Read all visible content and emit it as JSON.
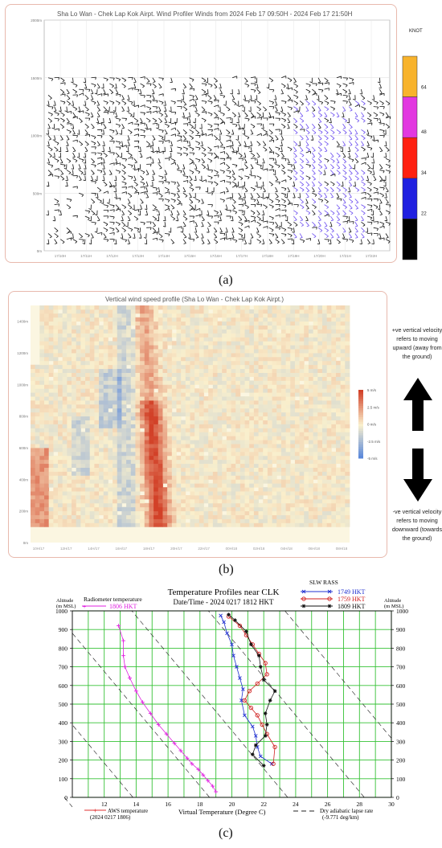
{
  "panel_a": {
    "title": "Sha Lo Wan - Chek Lap Kok Airpt. Wind Profiler Winds from 2024 Feb 17 09:50H - 2024 Feb 17 21:50H",
    "unit": "KNOT",
    "legend_ticks": [
      "64",
      "48",
      "34",
      "22"
    ],
    "legend_colors": [
      "#f8b32c",
      "#e238e0",
      "#ff2010",
      "#2020e0",
      "#000000"
    ],
    "caption": "(a)"
  },
  "panel_b": {
    "title": "Vertical wind speed profile (Sha Lo Wan - Chek Lap Kok Airpt.)",
    "colorbar_labels": [
      "5 m/s",
      "2.5 m/s",
      "0 m/s",
      "-2.5 m/s",
      "-5 m/s"
    ],
    "note_up": "+ve vertical velocity refers to moving upward (away from the ground)",
    "note_down": "-ve vertical velocity refers to moving downward (towards the ground)",
    "caption": "(b)"
  },
  "panel_c": {
    "title": "Temperature Profiles near CLK",
    "datetime": "Date/Time - 2024 0217 1812 HKT",
    "left_axis_label_1": "Altitude",
    "left_axis_label_2": "(m MSL)",
    "right_axis_label_1": "Altitude",
    "right_axis_label_2": "(m MSL)",
    "radiometer_label": "Radiometer temperature",
    "radiometer_time": "1806 HKT",
    "rass_label": "SLW RASS",
    "rass_times": [
      "1749 HKT",
      "1759 HKT",
      "1809 HKT"
    ],
    "aws_label": "AWS temperature",
    "aws_time": "(2024 0217 1806)",
    "xlabel": "Virtual Temperature (Degree C)",
    "lapse_label": "Dry adiabatic lapse rate",
    "lapse_value": "(-9.771 deg/km)",
    "caption": "(c)"
  },
  "chart_data": [
    {
      "type": "scatter",
      "title": "Sha Lo Wan - Chek Lap Kok Airpt. Wind Profiler Winds from 2024 Feb 17 09:50H - 2024 Feb 17 21:50H",
      "ylabel": "",
      "yticks": [
        "0m",
        "500m",
        "1000m",
        "1500m",
        "2000m"
      ],
      "xticks": [
        "17/10H",
        "17/11H",
        "17/12H",
        "17/13H",
        "17/14H",
        "17/15H",
        "17/16H",
        "17/17H",
        "17/18H",
        "17/19H",
        "17/20H",
        "17/21H",
        "17/22H"
      ],
      "ylim": [
        0,
        2000
      ],
      "legend": {
        "unit": "KNOT",
        "bins": [
          ">64",
          "48-64",
          "34-48",
          "22-34",
          "<22"
        ]
      },
      "note": "wind barbs, predominantly black (<22 kt); blue barbs (22-34 kt) mainly 17/18H-17/21H below 1400m"
    },
    {
      "type": "heatmap",
      "title": "Vertical wind speed profile (Sha Lo Wan - Chek Lap Kok Airpt.)",
      "yticks": [
        "0m",
        "200m",
        "400m",
        "600m",
        "800m",
        "1000m",
        "1200m",
        "1400m"
      ],
      "xticks": [
        "10H/17",
        "12H/17",
        "14H/17",
        "16H/17",
        "18H/17",
        "20H/17",
        "22H/17",
        "00H/18",
        "02H/18",
        "04H/18",
        "06H/18",
        "08H/18"
      ],
      "ylim": [
        0,
        1500
      ],
      "colorbar": {
        "labels": [
          "5 m/s",
          "2.5 m/s",
          "0 m/s",
          "-2.5 m/s",
          "-5 m/s"
        ],
        "range": [
          -5,
          5
        ]
      },
      "note": "strong updraft (~+3 to +5 m/s) around 18H-20H/17 below ~900m"
    },
    {
      "type": "line",
      "title": "Temperature Profiles near CLK",
      "xlabel": "Virtual Temperature (Degree C)",
      "ylabel": "Altitude (m MSL)",
      "xlim": [
        10,
        30
      ],
      "ylim": [
        0,
        1000
      ],
      "xticks": [
        12,
        14,
        16,
        18,
        20,
        22,
        24,
        26,
        28,
        30
      ],
      "yticks": [
        0,
        100,
        200,
        300,
        400,
        500,
        600,
        700,
        800,
        900,
        1000
      ],
      "series": [
        {
          "name": "1806 HKT",
          "color": "#e020e0",
          "marker": "plus",
          "points": [
            [
              19.0,
              30
            ],
            [
              18.8,
              60
            ],
            [
              18.5,
              90
            ],
            [
              18.2,
              120
            ],
            [
              17.9,
              150
            ],
            [
              17.5,
              180
            ],
            [
              17.2,
              210
            ],
            [
              16.8,
              250
            ],
            [
              16.4,
              290
            ],
            [
              15.9,
              340
            ],
            [
              15.4,
              390
            ],
            [
              14.9,
              450
            ],
            [
              14.4,
              510
            ],
            [
              14.0,
              570
            ],
            [
              13.6,
              640
            ],
            [
              13.3,
              700
            ],
            [
              13.2,
              760
            ],
            [
              13.2,
              840
            ],
            [
              12.9,
              920
            ]
          ]
        },
        {
          "name": "1749 HKT",
          "color": "#2030d0",
          "marker": "x",
          "points": [
            [
              22.5,
              180
            ],
            [
              21.8,
              220
            ],
            [
              21.6,
              270
            ],
            [
              21.5,
              330
            ],
            [
              21.3,
              380
            ],
            [
              20.8,
              440
            ],
            [
              20.6,
              520
            ],
            [
              20.7,
              580
            ],
            [
              20.5,
              640
            ],
            [
              20.3,
              700
            ],
            [
              20.1,
              760
            ],
            [
              20.0,
              820
            ],
            [
              19.7,
              880
            ],
            [
              19.5,
              940
            ],
            [
              19.3,
              975
            ]
          ]
        },
        {
          "name": "1759 HKT",
          "color": "#d02020",
          "marker": "circle",
          "points": [
            [
              22.6,
              180
            ],
            [
              22.7,
              270
            ],
            [
              22.2,
              340
            ],
            [
              21.9,
              390
            ],
            [
              21.6,
              440
            ],
            [
              21.2,
              480
            ],
            [
              20.8,
              520
            ],
            [
              21.1,
              570
            ],
            [
              21.6,
              610
            ],
            [
              22.2,
              660
            ],
            [
              22.1,
              720
            ],
            [
              21.7,
              770
            ],
            [
              21.3,
              820
            ],
            [
              20.9,
              870
            ],
            [
              20.5,
              920
            ],
            [
              19.8,
              970
            ]
          ]
        },
        {
          "name": "1809 HKT",
          "color": "#101010",
          "marker": "star",
          "points": [
            [
              22.0,
              170
            ],
            [
              21.3,
              230
            ],
            [
              21.5,
              280
            ],
            [
              22.1,
              330
            ],
            [
              22.2,
              390
            ],
            [
              22.1,
              450
            ],
            [
              22.4,
              520
            ],
            [
              22.7,
              570
            ],
            [
              22.0,
              630
            ],
            [
              21.8,
              700
            ],
            [
              21.7,
              760
            ],
            [
              21.2,
              820
            ],
            [
              20.9,
              890
            ],
            [
              20.2,
              950
            ],
            [
              19.8,
              980
            ]
          ]
        }
      ]
    }
  ]
}
